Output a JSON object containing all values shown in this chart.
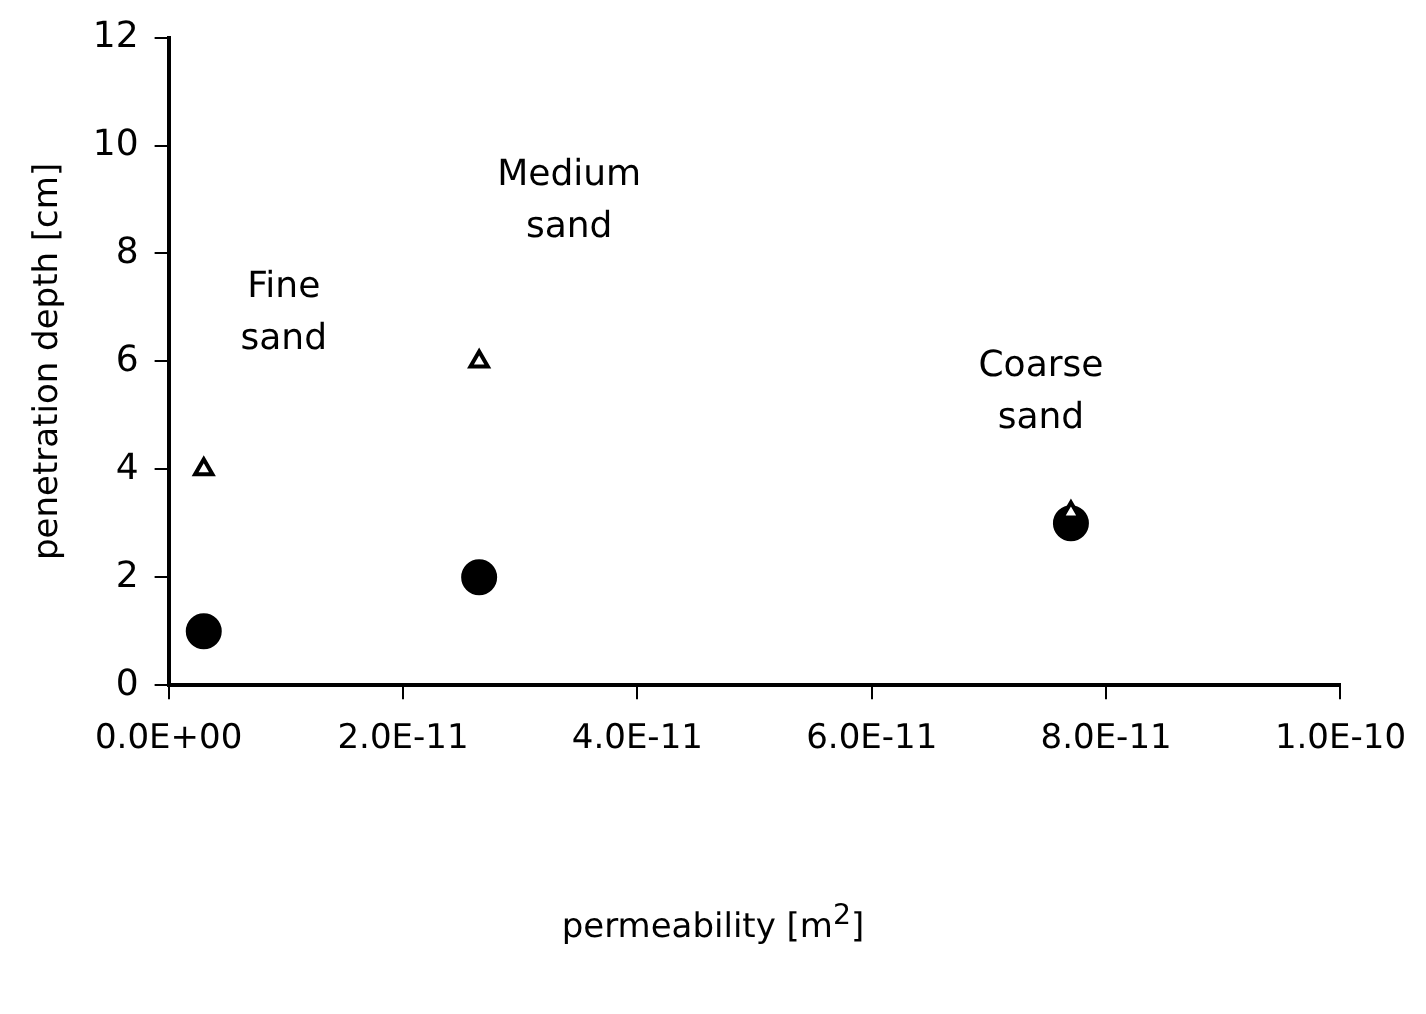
{
  "chart_data": {
    "type": "scatter",
    "xlabel": "permeability [m$^{2}$]",
    "ylabel": "penetration depth [cm]",
    "xlim": [
      0,
      1e-10
    ],
    "xticks": [
      {
        "value": 0,
        "label": "0.0E+00"
      },
      {
        "value": 2e-11,
        "label": "2.0E-11"
      },
      {
        "value": 4e-11,
        "label": "4.0E-11"
      },
      {
        "value": 6e-11,
        "label": "6.0E-11"
      },
      {
        "value": 8e-11,
        "label": "8.0E-11"
      },
      {
        "value": 1e-10,
        "label": "1.0E-10"
      }
    ],
    "ylim": [
      0,
      12
    ],
    "yticks": [
      0,
      2,
      4,
      6,
      8,
      10,
      12
    ],
    "grid": false,
    "legend": false,
    "series": [
      {
        "color": "#000000",
        "marker": "circle",
        "x": [
          3e-12,
          2.65e-11,
          7.7e-11
        ],
        "values": [
          1,
          2,
          3
        ]
      },
      {
        "color": "#000000",
        "marker": "triangle",
        "x": [
          3e-12,
          2.65e-11,
          7.7e-11
        ],
        "values": [
          4,
          6,
          3.2
        ]
      }
    ],
    "annotations": [
      "Fine sand",
      "Medium sand",
      "Coarse sand"
    ]
  }
}
